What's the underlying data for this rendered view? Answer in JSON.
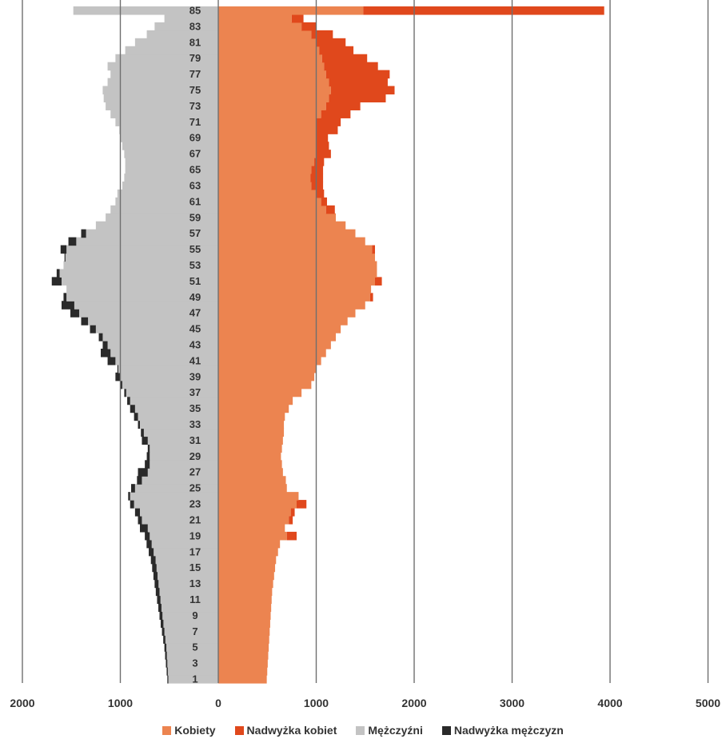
{
  "chart_data": {
    "type": "population-pyramid",
    "colors": {
      "Kobiety": "#ec8450",
      "Nadwyżka kobiet": "#e0481c",
      "Mężczyźni": "#c3c3c3",
      "Nadwyżka mężczyzn": "#2a2a2a",
      "grid": "#6f6f6f"
    },
    "x_tick_labels": [
      "2000",
      "1000",
      "0",
      "1000",
      "2000",
      "3000",
      "4000",
      "5000"
    ],
    "x_tick_values": [
      -2000,
      -1000,
      0,
      1000,
      2000,
      3000,
      4000,
      5000
    ],
    "xlim": [
      -2000,
      5000
    ],
    "y_tick_labels": [
      "1",
      "3",
      "5",
      "7",
      "9",
      "11",
      "13",
      "15",
      "17",
      "19",
      "21",
      "23",
      "25",
      "27",
      "29",
      "31",
      "33",
      "35",
      "37",
      "39",
      "41",
      "43",
      "45",
      "47",
      "49",
      "51",
      "53",
      "55",
      "57",
      "59",
      "61",
      "63",
      "65",
      "67",
      "69",
      "71",
      "73",
      "75",
      "77",
      "79",
      "81",
      "83",
      "85"
    ],
    "ages": [
      1,
      2,
      3,
      4,
      5,
      6,
      7,
      8,
      9,
      10,
      11,
      12,
      13,
      14,
      15,
      16,
      17,
      18,
      19,
      20,
      21,
      22,
      23,
      24,
      25,
      26,
      27,
      28,
      29,
      30,
      31,
      32,
      33,
      34,
      35,
      36,
      37,
      38,
      39,
      40,
      41,
      42,
      43,
      44,
      45,
      46,
      47,
      48,
      49,
      50,
      51,
      52,
      53,
      54,
      55,
      56,
      57,
      58,
      59,
      60,
      61,
      62,
      63,
      64,
      65,
      66,
      67,
      68,
      69,
      70,
      71,
      72,
      73,
      74,
      75,
      76,
      77,
      78,
      79,
      80,
      81,
      82,
      83,
      84,
      85
    ],
    "series": [
      {
        "name": "Kobiety",
        "values": [
          495,
          500,
          505,
          510,
          515,
          520,
          525,
          530,
          535,
          540,
          545,
          550,
          560,
          570,
          580,
          590,
          610,
          630,
          700,
          680,
          720,
          740,
          800,
          820,
          700,
          690,
          660,
          650,
          640,
          650,
          660,
          670,
          670,
          680,
          720,
          760,
          850,
          950,
          980,
          1000,
          1050,
          1100,
          1150,
          1200,
          1250,
          1320,
          1400,
          1500,
          1550,
          1560,
          1600,
          1620,
          1620,
          1600,
          1570,
          1500,
          1400,
          1300,
          1200,
          1100,
          1050,
          1000,
          950,
          940,
          950,
          980,
          1000,
          1000,
          1000,
          1000,
          1000,
          1050,
          1100,
          1130,
          1150,
          1130,
          1100,
          1080,
          1060,
          1030,
          1000,
          950,
          850,
          750,
          1480
        ]
      },
      {
        "name": "Nadwyżka kobiet",
        "values": [
          0,
          0,
          0,
          0,
          0,
          0,
          0,
          0,
          0,
          0,
          0,
          0,
          0,
          0,
          0,
          0,
          0,
          0,
          100,
          0,
          40,
          40,
          100,
          0,
          0,
          0,
          0,
          0,
          0,
          0,
          0,
          0,
          0,
          0,
          0,
          0,
          0,
          0,
          0,
          0,
          0,
          0,
          0,
          0,
          0,
          0,
          0,
          0,
          30,
          0,
          70,
          0,
          0,
          0,
          30,
          0,
          0,
          0,
          0,
          90,
          60,
          80,
          120,
          130,
          120,
          100,
          150,
          130,
          120,
          220,
          250,
          300,
          350,
          580,
          650,
          600,
          650,
          550,
          460,
          350,
          300,
          220,
          150,
          120,
          2460
        ]
      },
      {
        "name": "Mężczyźni",
        "values": [
          510,
          515,
          520,
          525,
          530,
          540,
          550,
          560,
          570,
          580,
          590,
          600,
          610,
          620,
          630,
          640,
          660,
          680,
          700,
          720,
          780,
          800,
          860,
          900,
          850,
          780,
          720,
          700,
          700,
          700,
          720,
          760,
          800,
          820,
          850,
          900,
          940,
          980,
          1000,
          1020,
          1050,
          1100,
          1130,
          1180,
          1250,
          1330,
          1420,
          1470,
          1550,
          1550,
          1600,
          1620,
          1580,
          1560,
          1550,
          1450,
          1350,
          1250,
          1150,
          1100,
          1050,
          1030,
          980,
          960,
          950,
          950,
          960,
          980,
          1000,
          1010,
          1050,
          1100,
          1150,
          1170,
          1180,
          1130,
          1100,
          1130,
          1050,
          950,
          850,
          730,
          650,
          550,
          1480
        ]
      },
      {
        "name": "Nadwyżka mężczyzn",
        "values": [
          10,
          12,
          15,
          18,
          20,
          22,
          25,
          28,
          30,
          32,
          35,
          38,
          40,
          42,
          45,
          48,
          50,
          52,
          50,
          80,
          40,
          50,
          40,
          20,
          40,
          50,
          100,
          50,
          30,
          20,
          60,
          30,
          20,
          40,
          50,
          30,
          20,
          20,
          50,
          10,
          80,
          100,
          50,
          40,
          60,
          70,
          90,
          130,
          30,
          0,
          100,
          30,
          0,
          10,
          60,
          80,
          50,
          0,
          0,
          0,
          0,
          0,
          0,
          0,
          0,
          0,
          0,
          0,
          0,
          0,
          0,
          0,
          0,
          0,
          0,
          0,
          0,
          0,
          0,
          0,
          0,
          0,
          0,
          0,
          0
        ]
      }
    ],
    "legend": [
      "Kobiety",
      "Nadwyżka kobiet",
      "Mężczyźni",
      "Nadwyżka mężczyzn"
    ],
    "legend_position": "bottom",
    "grid": "vertical"
  }
}
